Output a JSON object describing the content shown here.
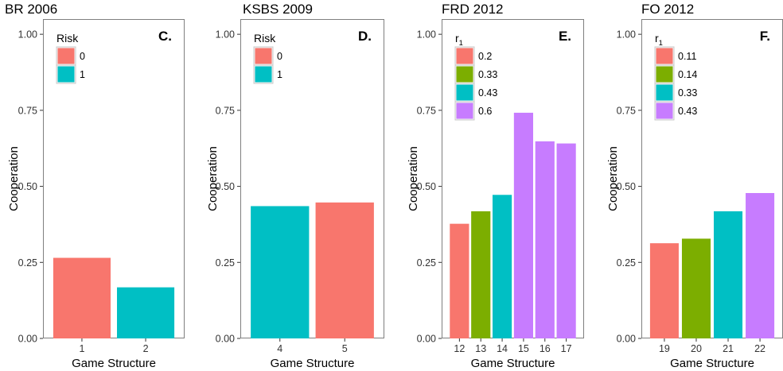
{
  "colors": {
    "red": "#F8766D",
    "green": "#7CAE00",
    "teal": "#00BFC4",
    "purple": "#C77CFF",
    "panel_border": "#7f7f7f",
    "tick_color": "#333333"
  },
  "chart_data": [
    {
      "type": "bar",
      "title": "BR 2006",
      "panel_letter": "C.",
      "xlabel": "Game Structure",
      "ylabel": "Cooperation",
      "ylim": [
        0,
        1.05
      ],
      "yticks": [
        "0.00",
        "0.25",
        "0.50",
        "0.75",
        "1.00"
      ],
      "categories": [
        "1",
        "2"
      ],
      "values": [
        0.265,
        0.168
      ],
      "bar_groups": [
        "0",
        "1"
      ],
      "legend": {
        "title": "Risk",
        "title_sub": "",
        "placement": "top-left",
        "entries": [
          {
            "label": "0",
            "color": "#F8766D"
          },
          {
            "label": "1",
            "color": "#00BFC4"
          }
        ]
      }
    },
    {
      "type": "bar",
      "title": "KSBS 2009",
      "panel_letter": "D.",
      "xlabel": "Game Structure",
      "ylabel": "Cooperation",
      "ylim": [
        0,
        1.05
      ],
      "yticks": [
        "0.00",
        "0.25",
        "0.50",
        "0.75",
        "1.00"
      ],
      "categories": [
        "4",
        "5"
      ],
      "values": [
        0.435,
        0.447
      ],
      "bar_groups": [
        "1",
        "0"
      ],
      "legend": {
        "title": "Risk",
        "title_sub": "",
        "placement": "top-left",
        "entries": [
          {
            "label": "0",
            "color": "#F8766D"
          },
          {
            "label": "1",
            "color": "#00BFC4"
          }
        ]
      }
    },
    {
      "type": "bar",
      "title": "FRD 2012",
      "panel_letter": "E.",
      "xlabel": "Game Structure",
      "ylabel": "Cooperation",
      "ylim": [
        0,
        1.05
      ],
      "yticks": [
        "0.00",
        "0.25",
        "0.50",
        "0.75",
        "1.00"
      ],
      "categories": [
        "12",
        "13",
        "14",
        "15",
        "16",
        "17"
      ],
      "values": [
        0.377,
        0.418,
        0.472,
        0.742,
        0.648,
        0.641
      ],
      "bar_groups": [
        "0.2",
        "0.33",
        "0.43",
        "0.6",
        "0.6",
        "0.6"
      ],
      "legend": {
        "title": "r",
        "title_sub": "1",
        "placement": "top-left",
        "entries": [
          {
            "label": "0.2",
            "color": "#F8766D"
          },
          {
            "label": "0.33",
            "color": "#7CAE00"
          },
          {
            "label": "0.43",
            "color": "#00BFC4"
          },
          {
            "label": "0.6",
            "color": "#C77CFF"
          }
        ]
      }
    },
    {
      "type": "bar",
      "title": "FO 2012",
      "panel_letter": "F.",
      "xlabel": "Game Structure",
      "ylabel": "Cooperation",
      "ylim": [
        0,
        1.05
      ],
      "yticks": [
        "0.00",
        "0.25",
        "0.50",
        "0.75",
        "1.00"
      ],
      "categories": [
        "19",
        "20",
        "21",
        "22"
      ],
      "values": [
        0.313,
        0.328,
        0.418,
        0.478
      ],
      "bar_groups": [
        "0.11",
        "0.14",
        "0.33",
        "0.43"
      ],
      "legend": {
        "title": "r",
        "title_sub": "1",
        "placement": "top-left",
        "entries": [
          {
            "label": "0.11",
            "color": "#F8766D"
          },
          {
            "label": "0.14",
            "color": "#7CAE00"
          },
          {
            "label": "0.33",
            "color": "#00BFC4"
          },
          {
            "label": "0.43",
            "color": "#C77CFF"
          }
        ]
      }
    }
  ]
}
